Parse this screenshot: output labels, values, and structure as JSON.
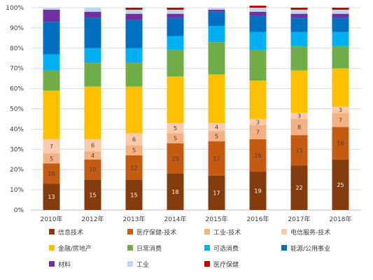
{
  "chart_data": {
    "type": "bar",
    "stacked": true,
    "grid": true,
    "legend_position": "bottom",
    "ylim": [
      0,
      100
    ],
    "y_ticks": [
      "0%",
      "10%",
      "20%",
      "30%",
      "40%",
      "50%",
      "60%",
      "70%",
      "80%",
      "90%",
      "100%"
    ],
    "y_tick_values": [
      0,
      10,
      20,
      30,
      40,
      50,
      60,
      70,
      80,
      90,
      100
    ],
    "categories": [
      "2010年",
      "2012年",
      "2013年",
      "2014年",
      "2015年",
      "2016年",
      "2017年",
      "2018年"
    ],
    "series": [
      {
        "name": "信息技术",
        "color": "#843C0C",
        "label_color": "#ffffff",
        "values": [
          13,
          15,
          15,
          18,
          17,
          19,
          22,
          25
        ],
        "labels": [
          "13",
          "15",
          "15",
          "18",
          "17",
          "19",
          "22",
          "25"
        ]
      },
      {
        "name": "医疗保健-技术",
        "color": "#C55A11",
        "label_color": "#404040",
        "values": [
          10,
          10,
          12,
          15,
          17,
          16,
          15,
          16
        ],
        "labels": [
          "10",
          "10",
          "12",
          "15",
          "17",
          "16",
          "15",
          "16"
        ]
      },
      {
        "name": "工业-技术",
        "color": "#F4B183",
        "label_color": "#404040",
        "values": [
          5,
          4,
          5,
          5,
          5,
          7,
          8,
          7
        ],
        "labels": [
          "5",
          "4",
          "5",
          "5",
          "5",
          "7",
          "8",
          "7"
        ]
      },
      {
        "name": "电信服务-技术",
        "color": "#F8CBAD",
        "label_color": "#404040",
        "values": [
          7,
          6,
          6,
          5,
          4,
          3,
          3,
          3
        ],
        "labels": [
          "7",
          "6",
          "6",
          "5",
          "4",
          "3",
          "3",
          "3"
        ]
      },
      {
        "name": "金融/房地产",
        "color": "#FFC000",
        "label_color": "#404040",
        "values": [
          24,
          26,
          23,
          23,
          24,
          19,
          21,
          19
        ],
        "labels": [
          "",
          "",
          "",
          "",
          "",
          "",
          "",
          ""
        ]
      },
      {
        "name": "日常消费",
        "color": "#70AD47",
        "label_color": "#404040",
        "values": [
          10,
          12,
          12,
          13,
          16,
          15,
          12,
          11
        ],
        "labels": [
          "",
          "",
          "",
          "",
          "",
          "",
          "",
          ""
        ]
      },
      {
        "name": "可选消费",
        "color": "#00B0F0",
        "label_color": "#404040",
        "values": [
          8,
          7,
          7,
          7,
          8,
          9,
          7,
          7
        ],
        "labels": [
          "",
          "",
          "",
          "",
          "",
          "",
          "",
          ""
        ]
      },
      {
        "name": "能源/公用事业",
        "color": "#0070C0",
        "label_color": "#404040",
        "values": [
          16,
          15,
          14,
          9,
          7,
          8,
          7,
          7
        ],
        "labels": [
          "",
          "",
          "",
          "",
          "",
          "",
          "",
          ""
        ]
      },
      {
        "name": "材料",
        "color": "#7030A0",
        "label_color": "#404040",
        "values": [
          6,
          3,
          3,
          2,
          1,
          2,
          2,
          2
        ],
        "labels": [
          "",
          "",
          "",
          "",
          "",
          "",
          "",
          ""
        ]
      },
      {
        "name": "工业",
        "color": "#BDD7EE",
        "label_color": "#404040",
        "values": [
          1,
          2,
          2,
          2,
          1,
          2,
          2,
          2
        ],
        "labels": [
          "",
          "",
          "",
          "",
          "",
          "",
          "",
          ""
        ]
      },
      {
        "name": "医疗保健",
        "color": "#C00000",
        "label_color": "#404040",
        "values": [
          0,
          0,
          1,
          1,
          0,
          1,
          1,
          1
        ],
        "labels": [
          "",
          "",
          "",
          "",
          "",
          "",
          "",
          ""
        ]
      }
    ]
  }
}
